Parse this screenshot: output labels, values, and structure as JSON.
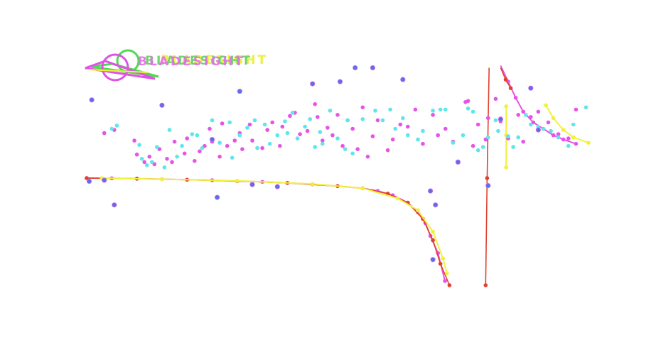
{
  "logo": {
    "text": "BLADESIGHT",
    "colors": {
      "magenta": "#e052e6",
      "green": "#52d852",
      "yellow": "#f0f23c"
    }
  },
  "chart_data": {
    "type": "scatter",
    "title": "",
    "xlabel": "",
    "ylabel": "",
    "grid": false,
    "legend": "none",
    "xlim": [
      0,
      100
    ],
    "ylim": [
      -10,
      10
    ],
    "colors": {
      "magenta": "#e653e8",
      "cyan": "#5ee6ea",
      "blue": "#5a6ef0",
      "yellow": "#f0f23a",
      "red": "#e0402e"
    },
    "series": [
      {
        "color": "magenta",
        "kind": "line",
        "points": [
          [
            0,
            0.0
          ],
          [
            5,
            -0.02
          ],
          [
            10,
            -0.05
          ],
          [
            15,
            -0.1
          ],
          [
            20,
            -0.15
          ],
          [
            25,
            -0.2
          ],
          [
            30,
            -0.28
          ],
          [
            35,
            -0.35
          ],
          [
            40,
            -0.45
          ],
          [
            45,
            -0.58
          ],
          [
            50,
            -0.75
          ],
          [
            55,
            -0.95
          ],
          [
            58,
            -1.2
          ],
          [
            61,
            -1.6
          ],
          [
            64,
            -2.3
          ],
          [
            66,
            -3.2
          ],
          [
            67.5,
            -4.2
          ],
          [
            68.5,
            -5.4
          ],
          [
            70,
            -7.0
          ],
          [
            71.4,
            -9.6
          ]
        ]
      },
      {
        "color": "magenta",
        "kind": "line",
        "points": [
          [
            82.5,
            10.5
          ],
          [
            84,
            9.0
          ],
          [
            85.5,
            7.5
          ],
          [
            87,
            6.2
          ],
          [
            89,
            5.2
          ],
          [
            91,
            4.6
          ],
          [
            93,
            4.0
          ],
          [
            95,
            3.6
          ],
          [
            97.5,
            3.2
          ]
        ]
      },
      {
        "color": "red",
        "kind": "line",
        "points": [
          [
            0,
            0.0
          ],
          [
            10,
            -0.05
          ],
          [
            20,
            -0.15
          ],
          [
            30,
            -0.28
          ],
          [
            40,
            -0.45
          ],
          [
            50,
            -0.75
          ],
          [
            55,
            -0.95
          ],
          [
            60,
            -1.45
          ],
          [
            64,
            -2.3
          ],
          [
            67,
            -3.8
          ],
          [
            69,
            -5.8
          ],
          [
            70.5,
            -8.0
          ],
          [
            72.3,
            -10.0
          ]
        ]
      },
      {
        "color": "red",
        "kind": "line",
        "points": [
          [
            79.5,
            -10.0
          ],
          [
            79.8,
            0
          ],
          [
            80.2,
            10.3
          ]
        ]
      },
      {
        "color": "red",
        "kind": "line",
        "points": [
          [
            82.5,
            10.3
          ],
          [
            83.5,
            9.2
          ],
          [
            84.5,
            8.4
          ]
        ]
      },
      {
        "color": "yellow",
        "kind": "line",
        "points": [
          [
            3,
            0.0
          ],
          [
            15,
            -0.1
          ],
          [
            30,
            -0.25
          ],
          [
            45,
            -0.55
          ],
          [
            55,
            -0.95
          ],
          [
            62,
            -1.9
          ],
          [
            66,
            -3.0
          ],
          [
            69,
            -5.0
          ],
          [
            71,
            -7.5
          ],
          [
            71.8,
            -8.9
          ]
        ]
      },
      {
        "color": "yellow",
        "kind": "line",
        "points": [
          [
            83.6,
            6.7
          ],
          [
            83.6,
            4.0
          ],
          [
            83.6,
            1.0
          ]
        ]
      },
      {
        "color": "yellow",
        "kind": "line",
        "points": [
          [
            91.5,
            6.8
          ],
          [
            93,
            5.6
          ],
          [
            95,
            4.5
          ],
          [
            97,
            3.8
          ],
          [
            100,
            3.3
          ]
        ]
      },
      {
        "color": "magenta",
        "kind": "scatter",
        "points": [
          [
            3.5,
            4.2
          ],
          [
            5.5,
            4.5
          ],
          [
            9.5,
            3.5
          ],
          [
            10,
            2.2
          ],
          [
            11.5,
            1.5
          ],
          [
            12.5,
            2.0
          ],
          [
            13.5,
            1.3
          ],
          [
            14.5,
            2.7
          ],
          [
            16,
            1.8
          ],
          [
            17,
            1.5
          ],
          [
            17.5,
            3.4
          ],
          [
            19.5,
            2.3
          ],
          [
            20,
            3.7
          ],
          [
            21.5,
            1.6
          ],
          [
            22.5,
            2.5
          ],
          [
            23.5,
            3.0
          ],
          [
            24.5,
            4.6
          ],
          [
            25,
            3.4
          ],
          [
            26.5,
            2.0
          ],
          [
            27,
            5.1
          ],
          [
            28,
            3.0
          ],
          [
            29.5,
            3.5
          ],
          [
            30.5,
            4.2
          ],
          [
            31,
            2.7
          ],
          [
            32.5,
            5.0
          ],
          [
            33,
            3.5
          ],
          [
            35,
            2.8
          ],
          [
            36,
            4.5
          ],
          [
            37,
            5.2
          ],
          [
            38.5,
            3.0
          ],
          [
            39,
            4.8
          ],
          [
            40.5,
            5.8
          ],
          [
            41.5,
            6.1
          ],
          [
            42.5,
            4.1
          ],
          [
            44,
            4.4
          ],
          [
            45.5,
            6.9
          ],
          [
            46,
            5.7
          ],
          [
            47,
            3.5
          ],
          [
            48,
            4.7
          ],
          [
            49,
            4.0
          ],
          [
            50,
            5.9
          ],
          [
            51,
            3.0
          ],
          [
            52,
            5.4
          ],
          [
            53,
            4.6
          ],
          [
            54,
            2.7
          ],
          [
            55,
            6.6
          ],
          [
            56,
            2.0
          ],
          [
            57,
            3.9
          ],
          [
            58,
            5.4
          ],
          [
            60,
            2.6
          ],
          [
            61,
            3.6
          ],
          [
            62.5,
            5.0
          ],
          [
            64,
            4.8
          ],
          [
            65.5,
            6.4
          ],
          [
            67,
            3.2
          ],
          [
            69,
            5.9
          ],
          [
            70,
            4.0
          ],
          [
            71.5,
            4.6
          ],
          [
            73,
            3.4
          ],
          [
            75.5,
            7.1
          ],
          [
            76,
            7.2
          ],
          [
            77,
            3.0
          ],
          [
            78,
            5.0
          ],
          [
            79.5,
            3.6
          ],
          [
            80,
            5.6
          ],
          [
            81.5,
            7.4
          ],
          [
            82.5,
            5.3
          ],
          [
            84,
            3.7
          ],
          [
            86,
            5.9
          ],
          [
            87,
            3.4
          ],
          [
            88.5,
            5.7
          ],
          [
            90,
            6.2
          ],
          [
            92,
            5.2
          ],
          [
            94,
            4.1
          ],
          [
            96,
            3.7
          ],
          [
            97.5,
            6.4
          ]
        ]
      },
      {
        "color": "cyan",
        "kind": "scatter",
        "points": [
          [
            5,
            4.6
          ],
          [
            6,
            4.9
          ],
          [
            10.5,
            3.1
          ],
          [
            11,
            1.8
          ],
          [
            12,
            1.2
          ],
          [
            13,
            1.5
          ],
          [
            14,
            2.9
          ],
          [
            15.5,
            1.0
          ],
          [
            16.5,
            4.5
          ],
          [
            18,
            2.0
          ],
          [
            19,
            3.0
          ],
          [
            21,
            4.1
          ],
          [
            22,
            4.0
          ],
          [
            23,
            2.8
          ],
          [
            25,
            5.4
          ],
          [
            26.5,
            3.3
          ],
          [
            28.5,
            5.2
          ],
          [
            29,
            1.9
          ],
          [
            30.5,
            4.0
          ],
          [
            32,
            4.7
          ],
          [
            33.5,
            5.4
          ],
          [
            34,
            2.8
          ],
          [
            35.5,
            5.0
          ],
          [
            36.5,
            3.2
          ],
          [
            38,
            4.0
          ],
          [
            39.5,
            5.3
          ],
          [
            40,
            4.2
          ],
          [
            41,
            6.1
          ],
          [
            42,
            3.7
          ],
          [
            43.5,
            4.8
          ],
          [
            44.5,
            5.5
          ],
          [
            45.5,
            2.9
          ],
          [
            46.5,
            4.3
          ],
          [
            47,
            3.2
          ],
          [
            48.5,
            6.3
          ],
          [
            50,
            3.7
          ],
          [
            51.5,
            2.7
          ],
          [
            52,
            5.4
          ],
          [
            53,
            2.3
          ],
          [
            55,
            5.5
          ],
          [
            57.5,
            6.3
          ],
          [
            59,
            5.4
          ],
          [
            60.5,
            6.4
          ],
          [
            61.5,
            4.6
          ],
          [
            63,
            5.6
          ],
          [
            64,
            4.0
          ],
          [
            66,
            3.6
          ],
          [
            67,
            4.4
          ],
          [
            69,
            6.3
          ],
          [
            70.5,
            6.4
          ],
          [
            71.5,
            6.4
          ],
          [
            73,
            3.3
          ],
          [
            75,
            4.0
          ],
          [
            76,
            6.5
          ],
          [
            77,
            6.2
          ],
          [
            78,
            2.6
          ],
          [
            79,
            2.9
          ],
          [
            80,
            3.8
          ],
          [
            81.5,
            5.4
          ],
          [
            82,
            4.4
          ],
          [
            84,
            3.9
          ],
          [
            85,
            2.9
          ],
          [
            86,
            3.8
          ],
          [
            87.5,
            5.9
          ],
          [
            88.5,
            5.0
          ],
          [
            90,
            4.8
          ],
          [
            91,
            4.6
          ],
          [
            92.5,
            4.4
          ],
          [
            94,
            3.8
          ],
          [
            96,
            3.0
          ],
          [
            97,
            5.0
          ],
          [
            99.5,
            6.6
          ]
        ]
      },
      {
        "color": "blue",
        "kind": "scatter",
        "points": [
          [
            0.5,
            -0.3
          ],
          [
            1,
            7.3
          ],
          [
            3.5,
            -0.2
          ],
          [
            5.5,
            -2.5
          ],
          [
            15,
            6.8
          ],
          [
            25,
            3.6
          ],
          [
            26,
            -1.8
          ],
          [
            30.5,
            8.1
          ],
          [
            33,
            -0.6
          ],
          [
            38,
            -0.8
          ],
          [
            45,
            8.8
          ],
          [
            50.5,
            9.0
          ],
          [
            53.5,
            10.3
          ],
          [
            57,
            10.3
          ],
          [
            63,
            9.2
          ],
          [
            68.5,
            -1.2
          ],
          [
            69.5,
            -2.5
          ],
          [
            69,
            -7.6
          ],
          [
            74,
            1.5
          ],
          [
            80,
            -0.7
          ],
          [
            82.5,
            5.5
          ],
          [
            88.5,
            8.4
          ],
          [
            90,
            4.5
          ]
        ]
      }
    ]
  }
}
